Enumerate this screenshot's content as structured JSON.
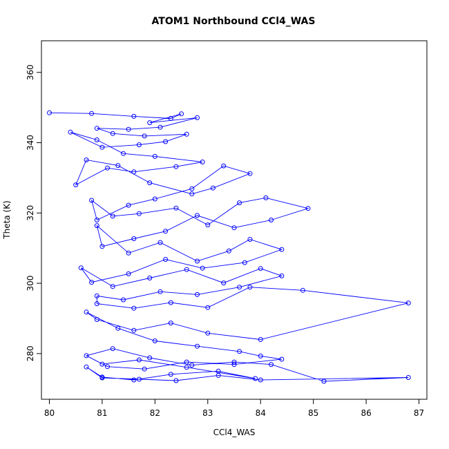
{
  "chart_data": {
    "type": "scatter",
    "title": "ATOM1 Northbound CCl4_WAS",
    "xlabel": "CCl4_WAS",
    "ylabel": "Theta (K)",
    "xlim": [
      79.85,
      87.15
    ],
    "ylim": [
      267,
      369
    ],
    "xticks": [
      80,
      81,
      82,
      83,
      84,
      85,
      86,
      87
    ],
    "yticks": [
      280,
      300,
      320,
      340,
      360
    ],
    "x_tick_labels": [
      "80",
      "81",
      "82",
      "83",
      "84",
      "85",
      "86",
      "87"
    ],
    "y_tick_labels": [
      "280",
      "300",
      "320",
      "340",
      "360"
    ],
    "grid": false,
    "legend": "none",
    "color": "#0000ff",
    "marker": "open-circle",
    "connected": true,
    "series": [
      {
        "x": [
          80.0,
          80.8,
          81.6,
          82.3,
          82.5,
          81.9,
          82.8,
          82.1,
          81.5,
          80.9,
          81.2,
          81.8,
          82.6,
          82.2,
          81.7,
          81.0,
          80.4,
          80.9,
          81.4,
          82.0,
          82.9,
          82.4,
          81.6,
          81.1,
          80.5,
          80.7,
          81.3,
          81.9,
          82.7,
          83.1,
          83.8,
          83.3,
          82.7,
          82.0,
          81.5,
          80.9,
          80.8,
          81.2,
          81.7,
          82.4,
          83.0,
          83.6,
          84.1,
          84.9,
          84.2,
          83.5,
          82.8,
          82.2,
          81.6,
          81.0,
          80.9,
          81.5,
          82.1,
          82.8,
          83.4,
          83.8,
          84.4,
          83.7,
          82.9,
          82.2,
          81.5,
          80.8,
          80.6,
          81.2,
          81.9,
          82.6,
          83.3,
          84.0,
          84.4,
          83.6,
          82.8,
          82.1,
          81.4,
          80.9,
          80.9,
          81.6,
          82.3,
          83.0,
          83.8,
          84.8,
          86.8,
          84.0,
          83.0,
          82.3,
          81.6,
          80.9,
          80.7,
          81.3,
          82.0,
          82.8,
          83.6,
          84.0,
          84.4,
          83.5,
          82.6,
          81.8,
          81.1,
          80.7,
          81.2,
          81.9,
          82.7,
          83.5,
          84.2,
          85.2,
          86.8,
          84.0,
          83.2,
          82.4,
          81.7,
          81.0,
          80.7,
          81.0,
          81.6,
          82.3,
          83.2,
          83.9,
          82.6,
          81.7,
          81.0
        ],
        "y": [
          348.5,
          348.3,
          347.5,
          346.9,
          348.2,
          345.7,
          347.1,
          344.4,
          343.8,
          344.1,
          342.6,
          341.9,
          342.4,
          340.3,
          339.4,
          338.7,
          343.0,
          340.8,
          336.9,
          336.1,
          334.5,
          333.2,
          331.7,
          332.8,
          328.0,
          335.1,
          333.5,
          328.6,
          325.4,
          327.1,
          331.2,
          333.4,
          326.9,
          324.0,
          322.2,
          318.0,
          323.6,
          319.1,
          319.8,
          321.4,
          316.6,
          322.9,
          324.3,
          321.3,
          318.0,
          315.8,
          319.3,
          314.8,
          312.7,
          310.5,
          316.4,
          308.6,
          311.6,
          306.3,
          309.2,
          312.5,
          309.6,
          305.9,
          304.3,
          306.8,
          302.7,
          300.3,
          304.4,
          299.1,
          301.5,
          303.9,
          300.1,
          304.2,
          302.1,
          298.9,
          296.8,
          297.6,
          295.3,
          296.4,
          294.2,
          292.9,
          294.5,
          293.1,
          298.9,
          298.0,
          294.4,
          284.0,
          285.8,
          288.7,
          286.6,
          289.7,
          291.8,
          287.2,
          283.6,
          282.1,
          280.6,
          279.3,
          278.4,
          276.9,
          277.6,
          275.6,
          276.3,
          279.4,
          281.4,
          278.8,
          276.7,
          277.6,
          276.9,
          272.1,
          273.2,
          272.5,
          273.8,
          272.3,
          272.7,
          273.1,
          276.2,
          273.3,
          272.5,
          274.1,
          275.0,
          272.9,
          276.1,
          278.2,
          277.0
        ]
      }
    ]
  }
}
